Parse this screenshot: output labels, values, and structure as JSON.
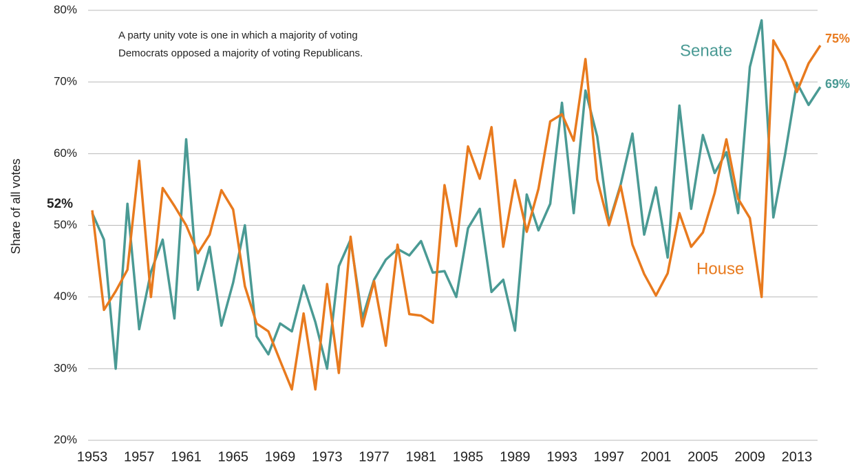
{
  "chart_data": {
    "type": "line",
    "note": [
      "A party unity vote is one in which a majority of voting",
      "Democrats opposed a majority of voting Republicans."
    ],
    "y_label": "Share of all votes",
    "start_label": "52%",
    "x": [
      1953,
      1954,
      1955,
      1956,
      1957,
      1958,
      1959,
      1960,
      1961,
      1962,
      1963,
      1964,
      1965,
      1966,
      1967,
      1968,
      1969,
      1970,
      1971,
      1972,
      1973,
      1974,
      1975,
      1976,
      1977,
      1978,
      1979,
      1980,
      1981,
      1982,
      1983,
      1984,
      1985,
      1986,
      1987,
      1988,
      1989,
      1990,
      1991,
      1992,
      1993,
      1994,
      1995,
      1996,
      1997,
      1998,
      1999,
      2000,
      2001,
      2002,
      2003,
      2004,
      2005,
      2006,
      2007,
      2008,
      2009,
      2010,
      2011,
      2012,
      2013,
      2014,
      2015
    ],
    "xlim": [
      1953,
      2015
    ],
    "xticks": [
      1953,
      1957,
      1961,
      1965,
      1969,
      1973,
      1977,
      1981,
      1985,
      1989,
      1993,
      1997,
      2001,
      2005,
      2009,
      2013
    ],
    "ylim": [
      20,
      80
    ],
    "yticks": [
      {
        "value": 20,
        "label": "20%"
      },
      {
        "value": 30,
        "label": "30%"
      },
      {
        "value": 40,
        "label": "40%"
      },
      {
        "value": 50,
        "label": "50%"
      },
      {
        "value": 60,
        "label": "60%"
      },
      {
        "value": 70,
        "label": "70%"
      },
      {
        "value": 80,
        "label": "80%"
      }
    ],
    "grid": true,
    "series": [
      {
        "name": "Senate",
        "color": "#4a9a94",
        "end_label": "69%",
        "values": [
          51.7,
          48,
          30,
          53,
          35.5,
          43.5,
          48,
          37,
          62,
          41,
          47,
          36,
          42,
          50,
          34.5,
          32,
          36.3,
          35.2,
          41.6,
          36.5,
          30,
          44.3,
          48,
          37,
          42.4,
          45.2,
          46.7,
          45.8,
          47.8,
          43.4,
          43.6,
          40,
          49.6,
          52.3,
          40.7,
          42.4,
          35.3,
          54.3,
          49.3,
          53,
          67.1,
          51.7,
          68.8,
          62.4,
          50.3,
          55.7,
          62.8,
          48.7,
          55.3,
          45.5,
          66.7,
          52.3,
          62.6,
          57.3,
          60.2,
          51.7,
          72.1,
          78.6,
          51.1,
          59.9,
          69.9,
          66.8,
          69.3
        ]
      },
      {
        "name": "House",
        "color": "#e87a1e",
        "end_label": "75%",
        "values": [
          52.1,
          38.2,
          40.8,
          43.8,
          59,
          40,
          55.2,
          52.7,
          50,
          46.1,
          48.7,
          54.9,
          52.2,
          41.5,
          36.3,
          35.2,
          31.1,
          27.1,
          37.7,
          27.1,
          41.8,
          29.4,
          48.4,
          35.9,
          42.2,
          33.2,
          47.3,
          37.6,
          37.4,
          36.4,
          55.6,
          47.1,
          61,
          56.5,
          63.7,
          47,
          56.3,
          49.1,
          55.1,
          64.5,
          65.5,
          61.8,
          73.2,
          56.4,
          50,
          55.5,
          47.3,
          43.2,
          40.2,
          43.3,
          51.7,
          47,
          49,
          54.5,
          62,
          53.7,
          51,
          40,
          75.8,
          72.9,
          68.6,
          72.6,
          75.1
        ]
      }
    ]
  }
}
